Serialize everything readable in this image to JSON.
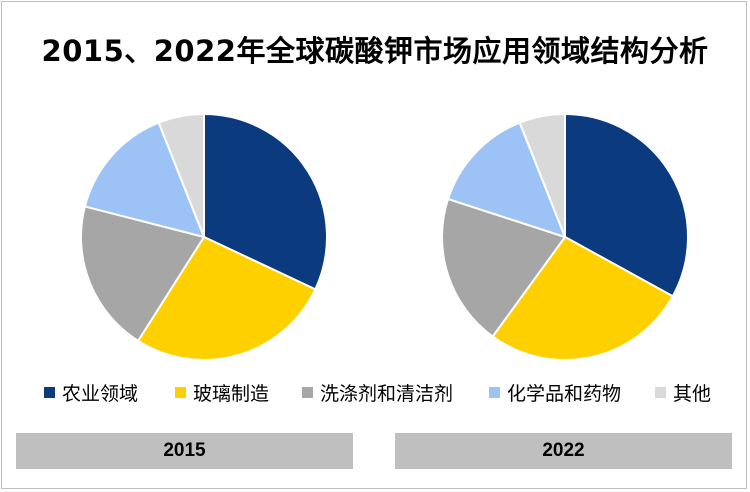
{
  "title": "2015、2022年全球碳酸钾市场应用领域结构分析",
  "legend": [
    {
      "label": "农业领域",
      "color": "#0b3a7e"
    },
    {
      "label": "玻璃制造",
      "color": "#ffd000"
    },
    {
      "label": "洗涤剂和清洁剂",
      "color": "#a6a6a6"
    },
    {
      "label": "化学品和药物",
      "color": "#9dc3f6"
    },
    {
      "label": "其他",
      "color": "#d9d9d9"
    }
  ],
  "chart_data": [
    {
      "type": "pie",
      "year_label": "2015",
      "categories": [
        "农业领域",
        "玻璃制造",
        "洗涤剂和清洁剂",
        "化学品和药物",
        "其他"
      ],
      "values": [
        32,
        27,
        20,
        15,
        6
      ]
    },
    {
      "type": "pie",
      "year_label": "2022",
      "categories": [
        "农业领域",
        "玻璃制造",
        "洗涤剂和清洁剂",
        "化学品和药物",
        "其他"
      ],
      "values": [
        33,
        27,
        20,
        14,
        6
      ]
    }
  ]
}
